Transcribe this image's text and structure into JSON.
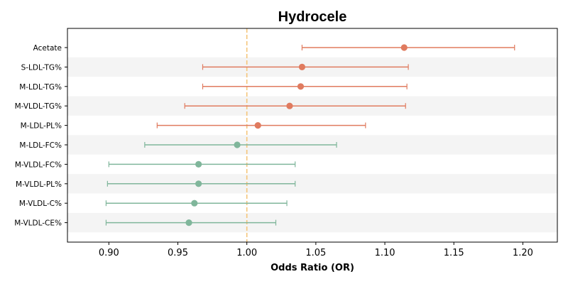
{
  "chart_data": {
    "type": "forest",
    "title": "Hydrocele",
    "xlabel": "Odds Ratio (OR)",
    "ylabel": "",
    "xlim": [
      0.87,
      1.225
    ],
    "xticks": [
      "0.90",
      "0.95",
      "1.00",
      "1.05",
      "1.10",
      "1.15",
      "1.20"
    ],
    "reference_line": 1.0,
    "reference_color": "#f5c57a",
    "positive_color": "#e07b5f",
    "negative_color": "#80b69b",
    "band_color": "#f4f4f4",
    "grid": false,
    "rows": [
      {
        "label": "Acetate",
        "or": 1.114,
        "lower": 1.04,
        "upper": 1.194
      },
      {
        "label": "S-LDL-TG%",
        "or": 1.04,
        "lower": 0.968,
        "upper": 1.117
      },
      {
        "label": "M-LDL-TG%",
        "or": 1.039,
        "lower": 0.968,
        "upper": 1.116
      },
      {
        "label": "M-VLDL-TG%",
        "or": 1.031,
        "lower": 0.955,
        "upper": 1.115
      },
      {
        "label": "M-LDL-PL%",
        "or": 1.008,
        "lower": 0.935,
        "upper": 1.086
      },
      {
        "label": "M-LDL-FC%",
        "or": 0.993,
        "lower": 0.926,
        "upper": 1.065
      },
      {
        "label": "M-VLDL-FC%",
        "or": 0.965,
        "lower": 0.9,
        "upper": 1.035
      },
      {
        "label": "M-VLDL-PL%",
        "or": 0.965,
        "lower": 0.899,
        "upper": 1.035
      },
      {
        "label": "M-VLDL-C%",
        "or": 0.962,
        "lower": 0.898,
        "upper": 1.029
      },
      {
        "label": "M-VLDL-CE%",
        "or": 0.958,
        "lower": 0.898,
        "upper": 1.021
      }
    ]
  }
}
